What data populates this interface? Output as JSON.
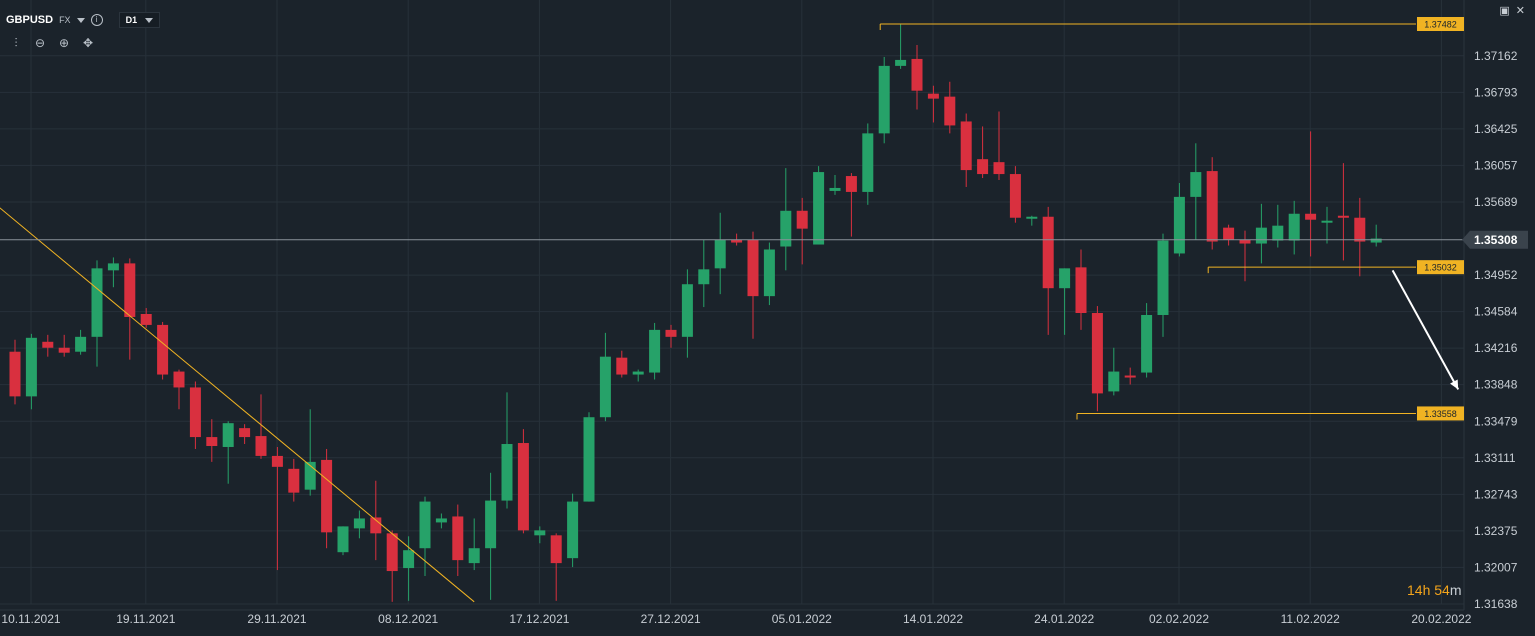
{
  "header": {
    "symbol": "GBPUSD",
    "market": "FX",
    "info_icon": "info-icon",
    "timeframe": "D1",
    "tools": [
      "candles-settings-icon",
      "zoom-out-icon",
      "zoom-in-icon",
      "crosshair-move-icon"
    ]
  },
  "window_controls": [
    "maximize-icon",
    "close-icon"
  ],
  "countdown": {
    "hours": "14",
    "h_unit": "h",
    "minutes": "54",
    "m_unit": "m"
  },
  "colors": {
    "background": "#1b232b",
    "grid": "#27313a",
    "up": "#26a269",
    "down": "#d9303f",
    "level": "#f0b323",
    "current": "#8a929a"
  },
  "chart_data": {
    "type": "candlestick",
    "symbol": "GBPUSD",
    "timeframe": "D1",
    "ylim": [
      1.3155,
      1.3765
    ],
    "y_ticks": [
      "1.37162",
      "1.36793",
      "1.36425",
      "1.36057",
      "1.35689",
      "1.34952",
      "1.34584",
      "1.34216",
      "1.33848",
      "1.33479",
      "1.33111",
      "1.32743",
      "1.32375",
      "1.32007",
      "1.31638"
    ],
    "x_ticks": [
      "10.11.2021",
      "19.11.2021",
      "29.11.2021",
      "08.12.2021",
      "17.12.2021",
      "27.12.2021",
      "05.01.2022",
      "14.01.2022",
      "24.01.2022",
      "02.02.2022",
      "11.02.2022",
      "20.02.2022"
    ],
    "x_tick_indices": [
      0,
      7,
      15,
      23,
      31,
      39,
      47,
      55,
      63,
      70,
      78,
      86
    ],
    "first_date": "10.11.2021",
    "candles": [
      {
        "o": 1.3418,
        "h": 1.343,
        "l": 1.3365,
        "c": 1.3373
      },
      {
        "o": 1.3373,
        "h": 1.3436,
        "l": 1.336,
        "c": 1.3432
      },
      {
        "o": 1.3428,
        "h": 1.3435,
        "l": 1.3413,
        "c": 1.3422
      },
      {
        "o": 1.3422,
        "h": 1.3435,
        "l": 1.3413,
        "c": 1.3417
      },
      {
        "o": 1.3418,
        "h": 1.344,
        "l": 1.3415,
        "c": 1.3433
      },
      {
        "o": 1.3433,
        "h": 1.351,
        "l": 1.3403,
        "c": 1.3502
      },
      {
        "o": 1.35,
        "h": 1.3513,
        "l": 1.3483,
        "c": 1.3507
      },
      {
        "o": 1.3507,
        "h": 1.3512,
        "l": 1.341,
        "c": 1.3453
      },
      {
        "o": 1.3456,
        "h": 1.3462,
        "l": 1.3442,
        "c": 1.3445
      },
      {
        "o": 1.3445,
        "h": 1.3448,
        "l": 1.339,
        "c": 1.3395
      },
      {
        "o": 1.3398,
        "h": 1.34,
        "l": 1.336,
        "c": 1.3382
      },
      {
        "o": 1.3382,
        "h": 1.3388,
        "l": 1.332,
        "c": 1.3332
      },
      {
        "o": 1.3332,
        "h": 1.335,
        "l": 1.3307,
        "c": 1.3323
      },
      {
        "o": 1.3322,
        "h": 1.3348,
        "l": 1.3285,
        "c": 1.3346
      },
      {
        "o": 1.3341,
        "h": 1.3345,
        "l": 1.3325,
        "c": 1.3332
      },
      {
        "o": 1.3333,
        "h": 1.3375,
        "l": 1.331,
        "c": 1.3313
      },
      {
        "o": 1.3313,
        "h": 1.3322,
        "l": 1.3198,
        "c": 1.3302
      },
      {
        "o": 1.33,
        "h": 1.331,
        "l": 1.3267,
        "c": 1.3276
      },
      {
        "o": 1.3279,
        "h": 1.336,
        "l": 1.3273,
        "c": 1.3307
      },
      {
        "o": 1.3309,
        "h": 1.332,
        "l": 1.322,
        "c": 1.3236
      },
      {
        "o": 1.3216,
        "h": 1.3242,
        "l": 1.3213,
        "c": 1.3242
      },
      {
        "o": 1.324,
        "h": 1.3258,
        "l": 1.323,
        "c": 1.325
      },
      {
        "o": 1.3251,
        "h": 1.3288,
        "l": 1.3208,
        "c": 1.3235
      },
      {
        "o": 1.3235,
        "h": 1.3238,
        "l": 1.3166,
        "c": 1.3197
      },
      {
        "o": 1.32,
        "h": 1.3232,
        "l": 1.3167,
        "c": 1.3218
      },
      {
        "o": 1.322,
        "h": 1.3272,
        "l": 1.3192,
        "c": 1.3267
      },
      {
        "o": 1.3246,
        "h": 1.3255,
        "l": 1.324,
        "c": 1.325
      },
      {
        "o": 1.3252,
        "h": 1.3264,
        "l": 1.3192,
        "c": 1.3208
      },
      {
        "o": 1.3205,
        "h": 1.325,
        "l": 1.3198,
        "c": 1.322
      },
      {
        "o": 1.322,
        "h": 1.3296,
        "l": 1.3168,
        "c": 1.3268
      },
      {
        "o": 1.3268,
        "h": 1.3377,
        "l": 1.326,
        "c": 1.3325
      },
      {
        "o": 1.3326,
        "h": 1.334,
        "l": 1.3235,
        "c": 1.3238
      },
      {
        "o": 1.3233,
        "h": 1.3242,
        "l": 1.3225,
        "c": 1.3238
      },
      {
        "o": 1.3233,
        "h": 1.3235,
        "l": 1.3167,
        "c": 1.3205
      },
      {
        "o": 1.321,
        "h": 1.3275,
        "l": 1.3201,
        "c": 1.3267
      },
      {
        "o": 1.3267,
        "h": 1.3357,
        "l": 1.3267,
        "c": 1.3352
      },
      {
        "o": 1.3352,
        "h": 1.3437,
        "l": 1.3348,
        "c": 1.3413
      },
      {
        "o": 1.3412,
        "h": 1.3419,
        "l": 1.3392,
        "c": 1.3395
      },
      {
        "o": 1.3395,
        "h": 1.34,
        "l": 1.3388,
        "c": 1.3398
      },
      {
        "o": 1.3397,
        "h": 1.3447,
        "l": 1.339,
        "c": 1.344
      },
      {
        "o": 1.344,
        "h": 1.3445,
        "l": 1.3422,
        "c": 1.3433
      },
      {
        "o": 1.3433,
        "h": 1.3501,
        "l": 1.3412,
        "c": 1.3486
      },
      {
        "o": 1.3486,
        "h": 1.3531,
        "l": 1.3463,
        "c": 1.3501
      },
      {
        "o": 1.3502,
        "h": 1.3558,
        "l": 1.3476,
        "c": 1.3531
      },
      {
        "o": 1.3531,
        "h": 1.3537,
        "l": 1.3525,
        "c": 1.3528
      },
      {
        "o": 1.3531,
        "h": 1.3539,
        "l": 1.3431,
        "c": 1.3474
      },
      {
        "o": 1.3474,
        "h": 1.3528,
        "l": 1.3465,
        "c": 1.3521
      },
      {
        "o": 1.3524,
        "h": 1.3603,
        "l": 1.35,
        "c": 1.356
      },
      {
        "o": 1.356,
        "h": 1.3573,
        "l": 1.3506,
        "c": 1.3542
      },
      {
        "o": 1.3526,
        "h": 1.3605,
        "l": 1.3526,
        "c": 1.3599
      },
      {
        "o": 1.358,
        "h": 1.3596,
        "l": 1.3576,
        "c": 1.3583
      },
      {
        "o": 1.3595,
        "h": 1.3598,
        "l": 1.3534,
        "c": 1.3579
      },
      {
        "o": 1.3579,
        "h": 1.3648,
        "l": 1.3566,
        "c": 1.3638
      },
      {
        "o": 1.3638,
        "h": 1.3715,
        "l": 1.3628,
        "c": 1.3706
      },
      {
        "o": 1.3706,
        "h": 1.3748,
        "l": 1.3703,
        "c": 1.3712
      },
      {
        "o": 1.3713,
        "h": 1.3727,
        "l": 1.3662,
        "c": 1.3681
      },
      {
        "o": 1.3678,
        "h": 1.3686,
        "l": 1.3649,
        "c": 1.3673
      },
      {
        "o": 1.3675,
        "h": 1.369,
        "l": 1.3638,
        "c": 1.3646
      },
      {
        "o": 1.365,
        "h": 1.3658,
        "l": 1.3584,
        "c": 1.3601
      },
      {
        "o": 1.3612,
        "h": 1.3645,
        "l": 1.3593,
        "c": 1.3597
      },
      {
        "o": 1.3609,
        "h": 1.366,
        "l": 1.3591,
        "c": 1.3597
      },
      {
        "o": 1.3597,
        "h": 1.3605,
        "l": 1.3548,
        "c": 1.3553
      },
      {
        "o": 1.3553,
        "h": 1.3555,
        "l": 1.3545,
        "c": 1.3554
      },
      {
        "o": 1.3554,
        "h": 1.3564,
        "l": 1.3435,
        "c": 1.3482
      },
      {
        "o": 1.3482,
        "h": 1.3502,
        "l": 1.3435,
        "c": 1.3502
      },
      {
        "o": 1.3503,
        "h": 1.3521,
        "l": 1.344,
        "c": 1.3457
      },
      {
        "o": 1.3457,
        "h": 1.3464,
        "l": 1.3358,
        "c": 1.3376
      },
      {
        "o": 1.3378,
        "h": 1.3422,
        "l": 1.3374,
        "c": 1.3398
      },
      {
        "o": 1.3394,
        "h": 1.3402,
        "l": 1.3385,
        "c": 1.3393
      },
      {
        "o": 1.3397,
        "h": 1.3467,
        "l": 1.3392,
        "c": 1.3455
      },
      {
        "o": 1.3455,
        "h": 1.3537,
        "l": 1.3433,
        "c": 1.353
      },
      {
        "o": 1.3517,
        "h": 1.3588,
        "l": 1.3514,
        "c": 1.3574
      },
      {
        "o": 1.3574,
        "h": 1.3628,
        "l": 1.3531,
        "c": 1.3599
      },
      {
        "o": 1.36,
        "h": 1.3614,
        "l": 1.3521,
        "c": 1.3529
      },
      {
        "o": 1.3543,
        "h": 1.3546,
        "l": 1.3525,
        "c": 1.3531
      },
      {
        "o": 1.3531,
        "h": 1.354,
        "l": 1.3489,
        "c": 1.3527
      },
      {
        "o": 1.3527,
        "h": 1.3567,
        "l": 1.3507,
        "c": 1.3543
      },
      {
        "o": 1.353,
        "h": 1.3566,
        "l": 1.3523,
        "c": 1.3545
      },
      {
        "o": 1.353,
        "h": 1.357,
        "l": 1.3516,
        "c": 1.3557
      },
      {
        "o": 1.3557,
        "h": 1.364,
        "l": 1.3514,
        "c": 1.3551
      },
      {
        "o": 1.355,
        "h": 1.3564,
        "l": 1.3527,
        "c": 1.355
      },
      {
        "o": 1.3555,
        "h": 1.3608,
        "l": 1.351,
        "c": 1.3553
      },
      {
        "o": 1.3553,
        "h": 1.3573,
        "l": 1.3494,
        "c": 1.3529
      },
      {
        "o": 1.3528,
        "h": 1.3546,
        "l": 1.3524,
        "c": 1.3532
      }
    ],
    "current_price": "1.35308",
    "horizontal_levels": [
      {
        "label": "1.37482",
        "value": 1.37482,
        "from": 53
      },
      {
        "label": "1.35032",
        "value": 1.35032,
        "from": 73
      },
      {
        "label": "1.33558",
        "value": 1.33558,
        "from": 65
      }
    ],
    "trendline": {
      "from": {
        "x": -8,
        "y": 1.366
      },
      "to": {
        "x": 28,
        "y": 1.3166
      }
    },
    "projection_arrow": {
      "from": {
        "x": 84,
        "y": 1.35
      },
      "to": {
        "x": 88,
        "y": 1.338
      }
    }
  }
}
